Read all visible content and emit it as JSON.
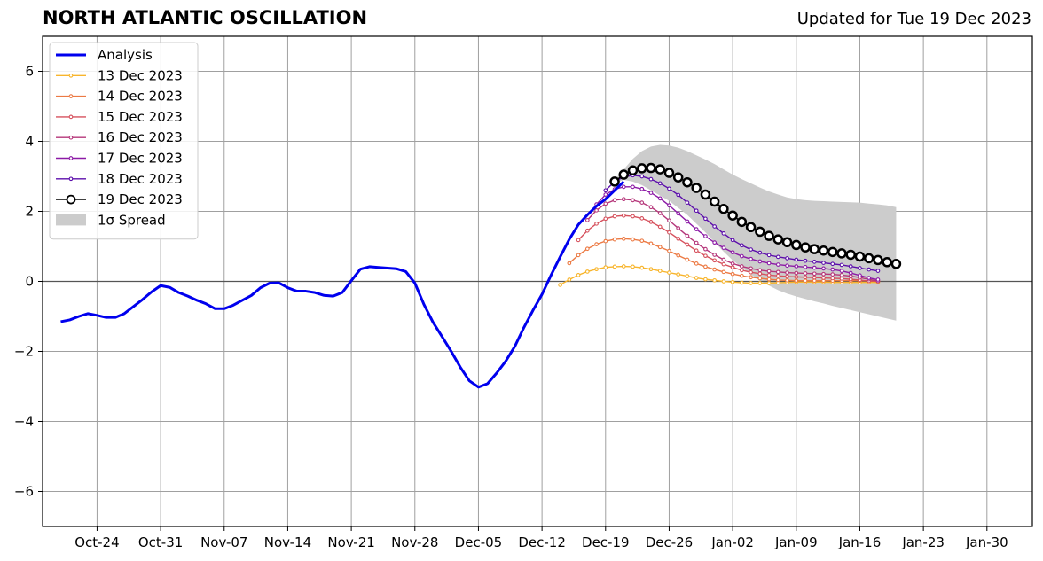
{
  "header": {
    "title": "NORTH ATLANTIC OSCILLATION",
    "updated": "Updated for Tue 19 Dec 2023"
  },
  "chart_data": {
    "type": "line",
    "title": "NORTH ATLANTIC OSCILLATION",
    "xlabel": "",
    "ylabel": "",
    "x_range": [
      "2023-10-18",
      "2024-02-04"
    ],
    "ylim": [
      -7,
      7
    ],
    "yticks": [
      -6,
      -4,
      -2,
      0,
      2,
      4,
      6
    ],
    "ytick_labels": [
      "−6",
      "−4",
      "−2",
      "0",
      "2",
      "4",
      "6"
    ],
    "xticks": [
      "2023-10-24",
      "2023-10-31",
      "2023-11-07",
      "2023-11-14",
      "2023-11-21",
      "2023-11-28",
      "2023-12-05",
      "2023-12-12",
      "2023-12-19",
      "2023-12-26",
      "2024-01-02",
      "2024-01-09",
      "2024-01-16",
      "2024-01-23",
      "2024-01-30"
    ],
    "xtick_labels": [
      "Oct-24",
      "Oct-31",
      "Nov-07",
      "Nov-14",
      "Nov-21",
      "Nov-28",
      "Dec-05",
      "Dec-12",
      "Dec-19",
      "Dec-26",
      "Jan-02",
      "Jan-09",
      "Jan-16",
      "Jan-23",
      "Jan-30"
    ],
    "grid": true,
    "legend_position": "top-left",
    "analysis": {
      "name": "Analysis",
      "color": "#0000ee",
      "start": "2023-10-20",
      "values": [
        -1.15,
        -1.1,
        -1.0,
        -0.92,
        -0.97,
        -1.03,
        -1.03,
        -0.92,
        -0.72,
        -0.52,
        -0.3,
        -0.12,
        -0.17,
        -0.32,
        -0.42,
        -0.54,
        -0.64,
        -0.78,
        -0.78,
        -0.68,
        -0.54,
        -0.4,
        -0.18,
        -0.05,
        -0.04,
        -0.18,
        -0.28,
        -0.28,
        -0.32,
        -0.4,
        -0.42,
        -0.32,
        0.02,
        0.35,
        0.42,
        0.4,
        0.38,
        0.36,
        0.28,
        -0.05,
        -0.66,
        -1.17,
        -1.58,
        -2.0,
        -2.45,
        -2.84,
        -3.02,
        -2.92,
        -2.62,
        -2.28,
        -1.86,
        -1.32,
        -0.83,
        -0.37,
        0.18,
        0.7,
        1.2,
        1.62,
        1.9,
        2.15,
        2.35,
        2.6,
        2.85
      ]
    },
    "forecasts": [
      {
        "name": "13 Dec 2023",
        "color": "#f8b52c",
        "start": "2023-12-14",
        "values": [
          -0.1,
          0.05,
          0.18,
          0.28,
          0.35,
          0.4,
          0.42,
          0.43,
          0.42,
          0.39,
          0.35,
          0.3,
          0.25,
          0.2,
          0.15,
          0.1,
          0.06,
          0.03,
          0.0,
          -0.02,
          -0.04,
          -0.05,
          -0.05,
          -0.05,
          -0.04,
          -0.03,
          -0.02,
          -0.02,
          -0.02,
          -0.02,
          -0.03,
          -0.03,
          -0.03,
          -0.03,
          -0.03,
          -0.03
        ]
      },
      {
        "name": "14 Dec 2023",
        "color": "#ec7a44",
        "start": "2023-12-15",
        "values": [
          0.52,
          0.75,
          0.93,
          1.06,
          1.15,
          1.2,
          1.22,
          1.2,
          1.16,
          1.08,
          0.98,
          0.87,
          0.74,
          0.62,
          0.51,
          0.42,
          0.34,
          0.27,
          0.21,
          0.16,
          0.12,
          0.09,
          0.06,
          0.04,
          0.03,
          0.02,
          0.02,
          0.02,
          0.02,
          0.02,
          0.02,
          0.02,
          0.02,
          0.01,
          0.01
        ]
      },
      {
        "name": "15 Dec 2023",
        "color": "#d6515d",
        "start": "2023-12-16",
        "values": [
          1.18,
          1.45,
          1.65,
          1.79,
          1.86,
          1.88,
          1.86,
          1.8,
          1.7,
          1.56,
          1.4,
          1.22,
          1.05,
          0.88,
          0.73,
          0.6,
          0.49,
          0.4,
          0.32,
          0.26,
          0.22,
          0.18,
          0.16,
          0.14,
          0.13,
          0.12,
          0.11,
          0.1,
          0.09,
          0.08,
          0.06,
          0.04,
          0.01,
          0.0
        ]
      },
      {
        "name": "16 Dec 2023",
        "color": "#b5367a",
        "start": "2023-12-17",
        "values": [
          1.75,
          2.03,
          2.22,
          2.32,
          2.35,
          2.32,
          2.25,
          2.12,
          1.95,
          1.74,
          1.52,
          1.3,
          1.1,
          0.92,
          0.76,
          0.62,
          0.51,
          0.43,
          0.37,
          0.32,
          0.29,
          0.27,
          0.25,
          0.24,
          0.23,
          0.22,
          0.21,
          0.2,
          0.18,
          0.15,
          0.11,
          0.06,
          0.01
        ]
      },
      {
        "name": "17 Dec 2023",
        "color": "#8c1aa6",
        "start": "2023-12-18",
        "values": [
          2.2,
          2.48,
          2.63,
          2.7,
          2.7,
          2.64,
          2.53,
          2.37,
          2.17,
          1.94,
          1.71,
          1.49,
          1.29,
          1.11,
          0.96,
          0.83,
          0.72,
          0.64,
          0.57,
          0.52,
          0.48,
          0.45,
          0.43,
          0.41,
          0.39,
          0.37,
          0.34,
          0.3,
          0.24,
          0.17,
          0.1,
          0.05
        ]
      },
      {
        "name": "18 Dec 2023",
        "color": "#5c0eab",
        "start": "2023-12-19",
        "values": [
          2.6,
          2.85,
          2.98,
          3.03,
          3.0,
          2.92,
          2.8,
          2.65,
          2.47,
          2.25,
          2.02,
          1.79,
          1.57,
          1.37,
          1.18,
          1.03,
          0.91,
          0.82,
          0.75,
          0.7,
          0.66,
          0.62,
          0.59,
          0.56,
          0.53,
          0.5,
          0.47,
          0.43,
          0.38,
          0.34,
          0.3
        ]
      },
      {
        "name": "19 Dec 2023",
        "color": "#000000",
        "start": "2023-12-20",
        "values": [
          2.85,
          3.05,
          3.17,
          3.23,
          3.24,
          3.2,
          3.1,
          2.97,
          2.83,
          2.67,
          2.48,
          2.28,
          2.07,
          1.88,
          1.7,
          1.55,
          1.42,
          1.3,
          1.2,
          1.12,
          1.04,
          0.97,
          0.92,
          0.88,
          0.84,
          0.8,
          0.76,
          0.71,
          0.66,
          0.61,
          0.55,
          0.5
        ]
      }
    ],
    "spread": {
      "name": "1σ Spread",
      "color": "#cccccc",
      "start": "2023-12-20",
      "upper": [
        2.9,
        3.2,
        3.5,
        3.72,
        3.85,
        3.9,
        3.88,
        3.82,
        3.72,
        3.6,
        3.48,
        3.35,
        3.2,
        3.05,
        2.92,
        2.8,
        2.68,
        2.57,
        2.48,
        2.4,
        2.35,
        2.32,
        2.3,
        2.29,
        2.28,
        2.27,
        2.26,
        2.25,
        2.22,
        2.2,
        2.17,
        2.12
      ],
      "lower": [
        2.8,
        2.9,
        2.85,
        2.75,
        2.6,
        2.45,
        2.3,
        2.1,
        1.9,
        1.65,
        1.4,
        1.12,
        0.85,
        0.6,
        0.4,
        0.2,
        0.02,
        -0.12,
        -0.25,
        -0.35,
        -0.43,
        -0.5,
        -0.57,
        -0.63,
        -0.7,
        -0.76,
        -0.82,
        -0.88,
        -0.94,
        -1.0,
        -1.06,
        -1.12
      ]
    }
  }
}
